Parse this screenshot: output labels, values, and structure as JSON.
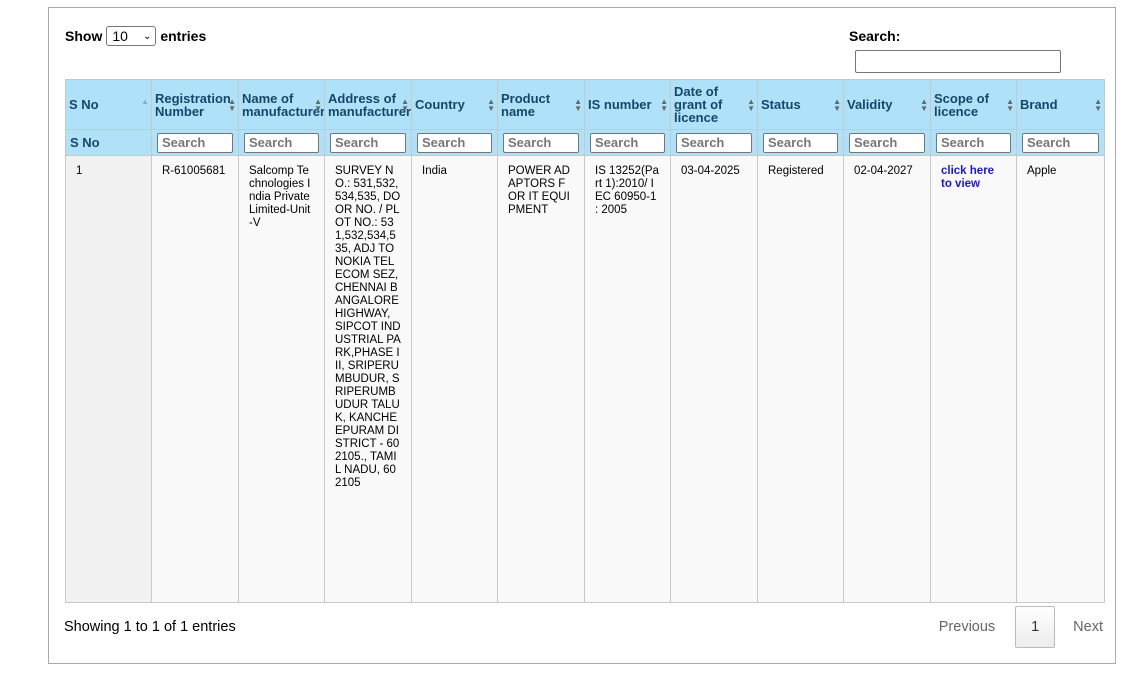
{
  "length": {
    "show": "Show",
    "value": "10",
    "entries": "entries"
  },
  "search": {
    "label": "Search:",
    "value": ""
  },
  "columns": [
    "S No",
    "Registration Number",
    "Name of manufacturer",
    "Address of manufacturer",
    "Country",
    "Product name",
    "IS number",
    "Date of grant of licence",
    "Status",
    "Validity",
    "Scope of licence",
    "Brand"
  ],
  "filters": {
    "first": "S No",
    "placeholder": "Search"
  },
  "rows": [
    {
      "sno": "1",
      "reg_no": "R-61005681",
      "manufacturer": "Salcomp Technologies India Private Limited-Unit-V",
      "address": "SURVEY NO.: 531,532,534,535, DOOR NO. / PLOT NO.: 531,532,534,535, ADJ TO NOKIA TELECOM SEZ, CHENNAI BANGALORE HIGHWAY, SIPCOT INDUSTRIAL PARK,PHASE III, SRIPERUMBUDUR, SRIPERUMBUDUR TALUK, KANCHEEPURAM DISTRICT - 602105., TAMIL NADU, 602105",
      "country": "India",
      "product": "POWER ADAPTORS FOR IT EQUIPMENT",
      "is_number": "IS 13252(Part 1):2010/ IEC 60950-1 : 2005",
      "date_grant": "03-04-2025",
      "status": "Registered",
      "validity": "02-04-2027",
      "scope_link": "click here to view",
      "brand": "Apple"
    }
  ],
  "footer": {
    "info": "Showing 1 to 1 of 1 entries",
    "previous": "Previous",
    "page": "1",
    "next": "Next"
  }
}
